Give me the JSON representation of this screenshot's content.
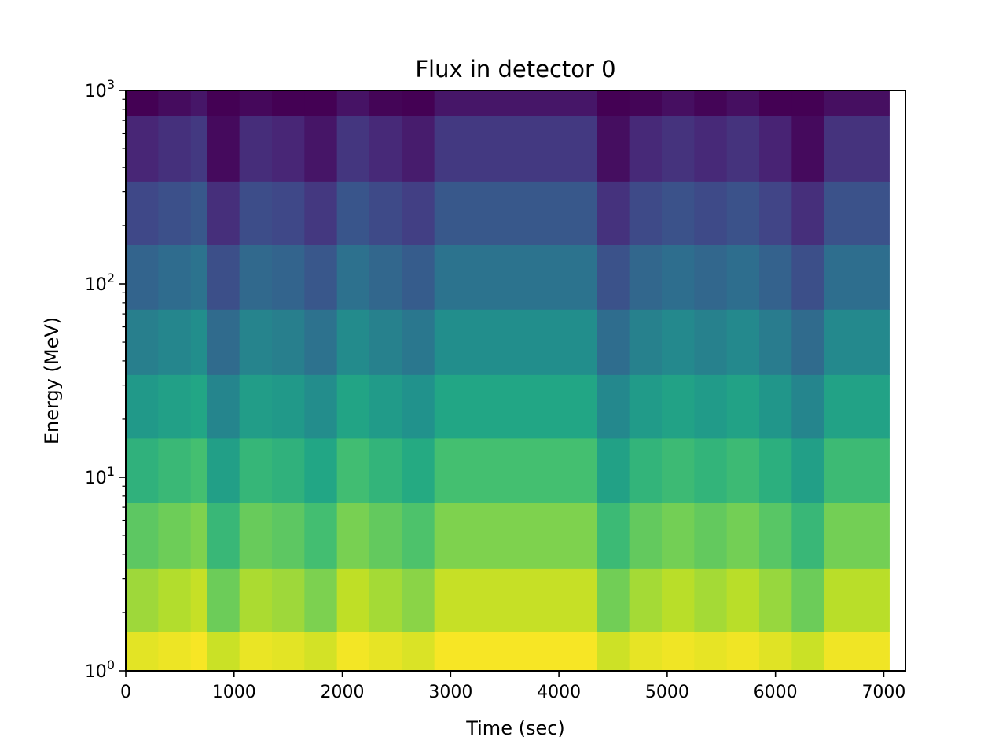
{
  "chart_data": {
    "type": "heatmap",
    "title": "Flux in detector 0",
    "xlabel": "Time (sec)",
    "ylabel": "Energy (MeV)",
    "xlim": [
      0,
      7200
    ],
    "ylim": [
      1,
      1000
    ],
    "yscale": "log",
    "colormap": "viridis",
    "x_ticks": [
      0,
      1000,
      2000,
      3000,
      4000,
      5000,
      6000,
      7000
    ],
    "x_tick_labels": [
      "0",
      "1000",
      "2000",
      "3000",
      "4000",
      "5000",
      "6000",
      "7000"
    ],
    "y_ticks": [
      1,
      10,
      100,
      1000
    ],
    "y_tick_labels": [
      {
        "base": "10",
        "exp": "0"
      },
      {
        "base": "10",
        "exp": "1"
      },
      {
        "base": "10",
        "exp": "2"
      },
      {
        "base": "10",
        "exp": "3"
      }
    ],
    "time_edges": [
      0,
      300,
      600,
      750,
      1050,
      1350,
      1650,
      1950,
      2250,
      2550,
      2850,
      3150,
      4350,
      4650,
      4950,
      5250,
      5550,
      5850,
      6150,
      6450,
      7050
    ],
    "energy_edges": [
      1,
      1.6,
      3.4,
      7.4,
      16,
      34,
      74,
      160,
      340,
      740,
      1000
    ],
    "time_bin_offsets": [
      0.0,
      0.03,
      0.06,
      -0.08,
      0.02,
      0.0,
      -0.05,
      0.05,
      0.01,
      -0.03,
      0.06,
      0.06,
      -0.07,
      0.01,
      0.04,
      0.01,
      0.04,
      -0.01,
      -0.08,
      0.04
    ],
    "gridlines": false,
    "legend": "none",
    "colorbar": "none"
  }
}
